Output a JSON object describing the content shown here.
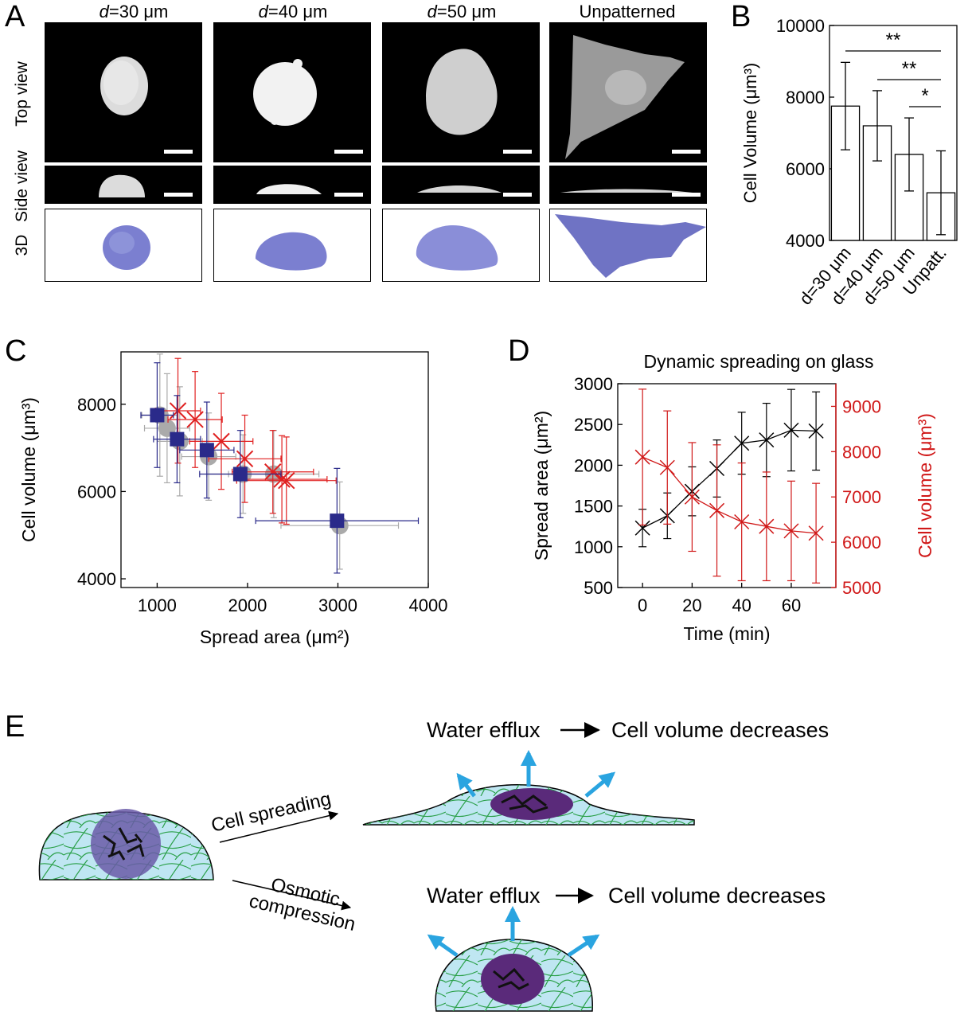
{
  "panel_a": {
    "label": "A",
    "columns": [
      {
        "prefix": "d",
        "suffix": "=30 μm"
      },
      {
        "prefix": "d",
        "suffix": "=40 μm"
      },
      {
        "prefix": "d",
        "suffix": "=50 μm"
      },
      {
        "prefix": "",
        "suffix": "Unpatterned"
      }
    ],
    "rows": [
      "Top view",
      "Side view",
      "3D"
    ],
    "colors": {
      "cell_fluorescence": "#e6e6e6",
      "cell_3d": "#7b7fd0"
    }
  },
  "panel_b": {
    "label": "B"
  },
  "panel_c": {
    "label": "C"
  },
  "panel_d": {
    "label": "D"
  },
  "panel_e": {
    "label": "E",
    "arrow1_label": "Cell spreading",
    "arrow2_label_line1": "Osmotic",
    "arrow2_label_line2": "compression",
    "top_result_left": "Water efflux",
    "top_result_right": "Cell volume decreases",
    "bottom_result_left": "Water efflux",
    "bottom_result_right": "Cell volume decreases",
    "colors": {
      "cytoplasm": "#bfe6f2",
      "fibers": "#2aa048",
      "nucleus": "#6a5aa8",
      "nucleus_dark": "#5a2a7a",
      "arrow": "#2aa4e0"
    }
  },
  "chart_data": [
    {
      "panel": "B",
      "type": "bar",
      "categories": [
        "d=30 μm",
        "d=40 μm",
        "d=50 μm",
        "Unpatt."
      ],
      "values": [
        7750,
        7200,
        6400,
        5330
      ],
      "errors": [
        1220,
        980,
        1020,
        1170
      ],
      "ylabel": "Cell Volume (μm³)",
      "ylim": [
        4000,
        10000
      ],
      "yticks": [
        4000,
        6000,
        8000,
        10000
      ],
      "significance": [
        {
          "from": 0,
          "to": 3,
          "label": "**"
        },
        {
          "from": 1,
          "to": 3,
          "label": "**"
        },
        {
          "from": 2,
          "to": 3,
          "label": "*"
        }
      ]
    },
    {
      "panel": "C",
      "type": "scatter",
      "xlabel": "Spread area (μm²)",
      "ylabel": "Cell volume (μm³)",
      "xlim": [
        600,
        4000
      ],
      "ylim": [
        3800,
        9200
      ],
      "xticks": [
        1000,
        2000,
        3000,
        4000
      ],
      "yticks": [
        4000,
        6000,
        8000
      ],
      "series": [
        {
          "color": "#aaaaaa",
          "marker": "circle",
          "points": [
            [
              1030,
              7750,
              200,
              1400
            ],
            [
              1110,
              7450,
              250,
              1250
            ],
            [
              1250,
              7150,
              250,
              1250
            ],
            [
              1570,
              6800,
              300,
              1000
            ],
            [
              1950,
              6400,
              400,
              900
            ],
            [
              2290,
              6400,
              500,
              1000
            ],
            [
              3020,
              5220,
              650,
              1000
            ]
          ]
        },
        {
          "color": "#e02020",
          "marker": "x",
          "points": [
            [
              1230,
              7850,
              250,
              1200
            ],
            [
              1420,
              7650,
              300,
              1100
            ],
            [
              1710,
              7150,
              350,
              1100
            ],
            [
              1970,
              6750,
              400,
              1000
            ],
            [
              2280,
              6450,
              450,
              950
            ],
            [
              2380,
              6280,
              500,
              1000
            ],
            [
              2430,
              6250,
              550,
              1000
            ]
          ]
        },
        {
          "color": "#2a2a8a",
          "marker": "square",
          "points": [
            [
              1000,
              7750,
              180,
              1200
            ],
            [
              1220,
              7200,
              260,
              1000
            ],
            [
              1550,
              6950,
              300,
              1100
            ],
            [
              1920,
              6400,
              450,
              1000
            ],
            [
              2990,
              5330,
              900,
              1200
            ]
          ]
        }
      ]
    },
    {
      "panel": "D",
      "type": "line",
      "title": "Dynamic spreading on glass",
      "xlabel": "Time (min)",
      "ylabel": "Spread area (μm²)",
      "ylabel_right": "Cell volume (μm³)",
      "x": [
        0,
        10,
        20,
        30,
        40,
        50,
        60,
        70
      ],
      "xlim": [
        -10,
        78
      ],
      "xticks": [
        0,
        20,
        40,
        60
      ],
      "ylim": [
        500,
        3000
      ],
      "yticks": [
        500,
        1000,
        1500,
        2000,
        2500,
        3000
      ],
      "ylim_right": [
        5000,
        9500
      ],
      "yticks_right": [
        5000,
        6000,
        7000,
        8000,
        9000
      ],
      "series": [
        {
          "axis": "left",
          "color": "#000000",
          "values": [
            1230,
            1380,
            1680,
            1960,
            2270,
            2310,
            2430,
            2420
          ],
          "errors": [
            230,
            280,
            300,
            350,
            380,
            450,
            500,
            480
          ]
        },
        {
          "axis": "right",
          "color": "#d01818",
          "values": [
            7880,
            7650,
            7000,
            6700,
            6450,
            6350,
            6250,
            6200
          ],
          "errors": [
            1500,
            1250,
            1200,
            1450,
            1300,
            1200,
            1100,
            1100
          ]
        }
      ]
    }
  ]
}
